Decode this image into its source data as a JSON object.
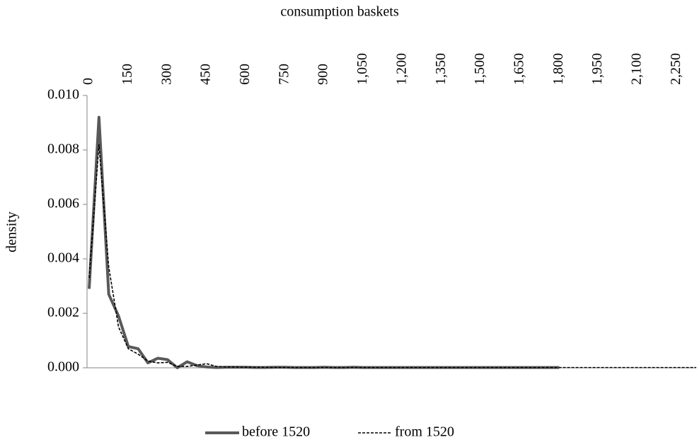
{
  "chart_data": {
    "type": "line",
    "x_label": "consumption baskets",
    "y_label": "density",
    "x": [
      0,
      37.5,
      75,
      112.5,
      150,
      187.5,
      225,
      262.5,
      300,
      337.5,
      375,
      412.5,
      450,
      487.5,
      525,
      562.5,
      600,
      637.5,
      675,
      712.5,
      750,
      787.5,
      825,
      862.5,
      900,
      937.5,
      975,
      1012.5,
      1050,
      1087.5,
      1125,
      1162.5,
      1200,
      1237.5,
      1275,
      1312.5,
      1350,
      1387.5,
      1425,
      1462.5,
      1500,
      1537.5,
      1575,
      1612.5,
      1650,
      1687.5,
      1725,
      1762.5,
      1800,
      1837.5,
      1875,
      1912.5,
      1950,
      1987.5,
      2025,
      2062.5,
      2100,
      2137.5,
      2175,
      2212.5,
      2250,
      2287.5,
      2325
    ],
    "series": [
      {
        "name": "before 1520",
        "color": "#595959",
        "dash": false,
        "values": [
          0.0029,
          0.0092,
          0.0027,
          0.0019,
          0.00078,
          0.0007,
          0.00018,
          0.00035,
          0.0003,
          0,
          0.00022,
          8e-05,
          3e-05,
          1e-05,
          2e-05,
          2e-05,
          2e-05,
          1e-05,
          1e-05,
          2e-05,
          2e-05,
          1e-05,
          1e-05,
          1e-05,
          2e-05,
          1e-05,
          1e-05,
          2e-05,
          1e-05,
          1e-05,
          1e-05,
          1e-05,
          1e-05,
          1e-05,
          1e-05,
          1e-05,
          1e-05,
          1e-05,
          1e-05,
          1e-05,
          1e-05,
          1e-05,
          1e-05,
          1e-05,
          1e-05,
          1e-05,
          1e-05,
          1e-05,
          1e-05,
          null,
          null,
          null,
          null,
          null,
          null,
          null,
          null,
          null,
          null,
          null,
          null,
          null,
          null
        ]
      },
      {
        "name": "from 1520",
        "color": "#000000",
        "dash": true,
        "values": [
          0.0033,
          0.0082,
          0.0037,
          0.0015,
          0.0007,
          0.0005,
          0.00025,
          0.00018,
          0.0002,
          5e-05,
          5e-05,
          0.0001,
          0.00015,
          5e-05,
          3e-05,
          3e-05,
          2e-05,
          2e-05,
          2e-05,
          1e-05,
          1e-05,
          1e-05,
          1e-05,
          1e-05,
          1e-05,
          1e-05,
          1e-05,
          1e-05,
          1e-05,
          1e-05,
          1e-05,
          1e-05,
          1e-05,
          1e-05,
          1e-05,
          1e-05,
          1e-05,
          1e-05,
          1e-05,
          1e-05,
          1e-05,
          1e-05,
          1e-05,
          1e-05,
          1e-05,
          1e-05,
          1e-05,
          1e-05,
          1e-05,
          1e-05,
          1e-05,
          1e-05,
          1e-05,
          1e-05,
          1e-05,
          1e-05,
          1e-05,
          1e-05,
          1e-05,
          1e-05,
          1e-05,
          1e-05,
          1e-05
        ]
      }
    ],
    "xlim": [
      0,
      2325
    ],
    "xticks": [
      0,
      150,
      300,
      450,
      600,
      750,
      900,
      {
        "value": 1050,
        "label": "1,050"
      },
      {
        "value": 1200,
        "label": "1,200"
      },
      {
        "value": 1350,
        "label": "1,350"
      },
      {
        "value": 1500,
        "label": "1,500"
      },
      {
        "value": 1650,
        "label": "1,650"
      },
      {
        "value": 1800,
        "label": "1,800"
      },
      {
        "value": 1950,
        "label": "1,950"
      },
      {
        "value": 2100,
        "label": "2,100"
      },
      {
        "value": 2250,
        "label": "2,250"
      }
    ],
    "ylim": [
      0,
      0.01
    ],
    "yticks": [
      {
        "value": 0,
        "label": "0.000"
      },
      {
        "value": 0.002,
        "label": "0.002"
      },
      {
        "value": 0.004,
        "label": "0.004"
      },
      {
        "value": 0.006,
        "label": "0.006"
      },
      {
        "value": 0.008,
        "label": "0.008"
      },
      {
        "value": 0.01,
        "label": "0.010"
      }
    ],
    "x_axis_position": "top",
    "legend": "bottom"
  }
}
